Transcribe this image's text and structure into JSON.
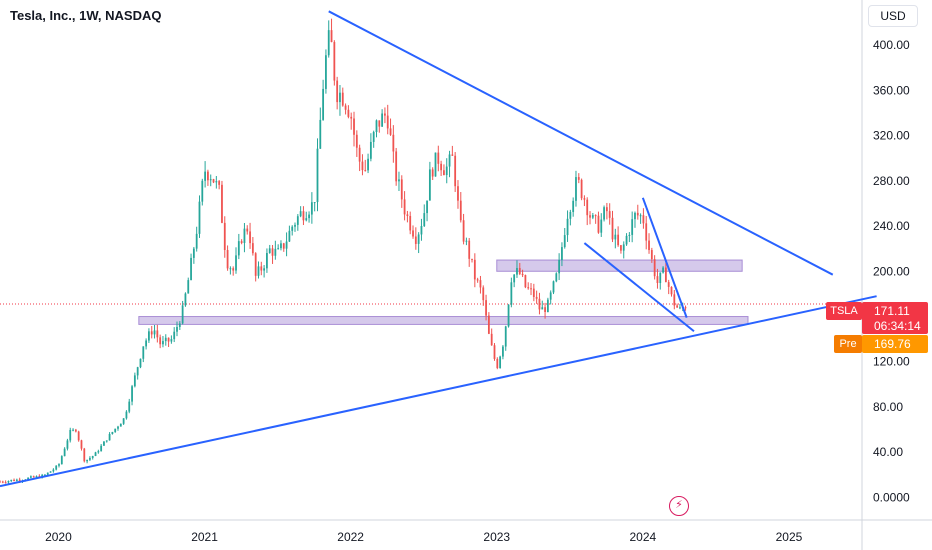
{
  "header": {
    "title": "Tesla, Inc., 1W, NASDAQ",
    "currency": "USD"
  },
  "price_labels": {
    "ticker": "TSLA",
    "last_price": "171.11",
    "countdown": "06:34:14",
    "pre_label": "Pre",
    "pre_price": "169.76"
  },
  "colors": {
    "up": "#26a69a",
    "down": "#ef5350",
    "trendline": "#2962ff",
    "zone_fill": "#b39ddb",
    "price_tag": "#f23645",
    "pre_tag": "#ff9800"
  },
  "chart_data": {
    "type": "candlestick",
    "title": "Tesla, Inc., 1W, NASDAQ",
    "y_ticks": [
      "400.00",
      "360.00",
      "320.00",
      "280.00",
      "240.00",
      "200.00",
      "120.00",
      "80.00",
      "40.00",
      "0.0000"
    ],
    "x_ticks": [
      {
        "label": "2020",
        "x": 2020.0
      },
      {
        "label": "2021",
        "x": 2021.0
      },
      {
        "label": "2022",
        "x": 2022.0
      },
      {
        "label": "2023",
        "x": 2023.0
      },
      {
        "label": "2024",
        "x": 2024.0
      },
      {
        "label": "2025",
        "x": 2025.0
      }
    ],
    "ylim": [
      -20,
      440
    ],
    "xlim": [
      2019.6,
      2025.5
    ],
    "price_path": [
      [
        2019.6,
        14
      ],
      [
        2019.75,
        16
      ],
      [
        2019.9,
        19
      ],
      [
        2020.0,
        28
      ],
      [
        2020.08,
        58
      ],
      [
        2020.12,
        60
      ],
      [
        2020.18,
        32
      ],
      [
        2020.25,
        38
      ],
      [
        2020.35,
        55
      ],
      [
        2020.45,
        70
      ],
      [
        2020.52,
        105
      ],
      [
        2020.58,
        135
      ],
      [
        2020.65,
        150
      ],
      [
        2020.7,
        135
      ],
      [
        2020.78,
        140
      ],
      [
        2020.85,
        165
      ],
      [
        2020.9,
        200
      ],
      [
        2020.95,
        240
      ],
      [
        2021.0,
        290
      ],
      [
        2021.05,
        285
      ],
      [
        2021.1,
        270
      ],
      [
        2021.15,
        210
      ],
      [
        2021.2,
        200
      ],
      [
        2021.25,
        230
      ],
      [
        2021.3,
        240
      ],
      [
        2021.35,
        195
      ],
      [
        2021.4,
        205
      ],
      [
        2021.45,
        220
      ],
      [
        2021.5,
        215
      ],
      [
        2021.55,
        225
      ],
      [
        2021.6,
        240
      ],
      [
        2021.65,
        250
      ],
      [
        2021.7,
        255
      ],
      [
        2021.75,
        260
      ],
      [
        2021.82,
        380
      ],
      [
        2021.86,
        410
      ],
      [
        2021.9,
        360
      ],
      [
        2021.95,
        355
      ],
      [
        2022.0,
        340
      ],
      [
        2022.05,
        300
      ],
      [
        2022.1,
        290
      ],
      [
        2022.18,
        330
      ],
      [
        2022.25,
        340
      ],
      [
        2022.3,
        290
      ],
      [
        2022.38,
        250
      ],
      [
        2022.45,
        230
      ],
      [
        2022.5,
        250
      ],
      [
        2022.55,
        290
      ],
      [
        2022.6,
        300
      ],
      [
        2022.65,
        290
      ],
      [
        2022.7,
        300
      ],
      [
        2022.75,
        240
      ],
      [
        2022.8,
        220
      ],
      [
        2022.85,
        195
      ],
      [
        2022.9,
        180
      ],
      [
        2022.95,
        140
      ],
      [
        2023.0,
        115
      ],
      [
        2023.05,
        140
      ],
      [
        2023.1,
        195
      ],
      [
        2023.15,
        200
      ],
      [
        2023.2,
        185
      ],
      [
        2023.25,
        180
      ],
      [
        2023.3,
        165
      ],
      [
        2023.35,
        170
      ],
      [
        2023.42,
        200
      ],
      [
        2023.48,
        250
      ],
      [
        2023.55,
        280
      ],
      [
        2023.6,
        265
      ],
      [
        2023.65,
        245
      ],
      [
        2023.7,
        240
      ],
      [
        2023.75,
        255
      ],
      [
        2023.8,
        230
      ],
      [
        2023.85,
        215
      ],
      [
        2023.9,
        235
      ],
      [
        2023.95,
        250
      ],
      [
        2024.0,
        248
      ],
      [
        2024.05,
        215
      ],
      [
        2024.1,
        190
      ],
      [
        2024.15,
        200
      ],
      [
        2024.2,
        175
      ],
      [
        2024.25,
        165
      ],
      [
        2024.3,
        171
      ]
    ],
    "trendlines": [
      {
        "from": [
          2021.85,
          430
        ],
        "to": [
          2025.3,
          197
        ]
      },
      {
        "from": [
          2019.6,
          10
        ],
        "to": [
          2025.6,
          178
        ]
      },
      {
        "from": [
          2023.6,
          225
        ],
        "to": [
          2024.35,
          147
        ]
      },
      {
        "from": [
          2024.0,
          265
        ],
        "to": [
          2024.3,
          159
        ]
      }
    ],
    "zones": [
      {
        "x0": 2023.0,
        "x1": 2024.68,
        "y0": 200,
        "y1": 210
      },
      {
        "x0": 2020.55,
        "x1": 2024.72,
        "y0": 153,
        "y1": 160
      }
    ],
    "current_price": 171.11,
    "premarket_price": 169.76
  }
}
